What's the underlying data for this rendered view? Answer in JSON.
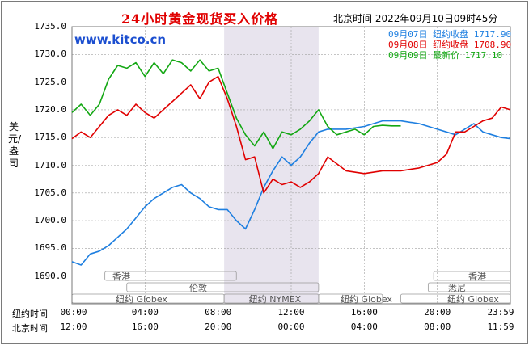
{
  "header": {
    "title": "24小时黄金现货买入价格",
    "timestamp": "北京时间  2022年09月10日09时45分",
    "site": "www.kitco.cn"
  },
  "colors": {
    "series_0907": "#1e7fe0",
    "series_0908": "#e00000",
    "series_0909": "#13a713",
    "shade": "#e8e4ee",
    "grid": "#a0a0a0"
  },
  "axis": {
    "ylabel": "美元/盎司",
    "row1_label": "纽约时间",
    "row2_label": "北京时间",
    "x_ny": [
      "00:00",
      "04:00",
      "08:00",
      "12:00",
      "16:00",
      "20:00",
      "23:59"
    ],
    "x_bj": [
      "12:00",
      "16:00",
      "20:00",
      "00:00",
      "04:00",
      "08:00",
      "11:59"
    ]
  },
  "sessions": {
    "hongkong_1": "香港",
    "hongkong_2": "香港",
    "london": "伦敦",
    "sydney": "悉尼",
    "ny_globex_1": "纽约 Globex",
    "ny_nymex": "纽约 NYMEX",
    "ny_globex_2": "纽约 Globex",
    "ny_globex_3": "纽约 Globex"
  },
  "legend": [
    {
      "label": "09月07日  纽约收盘 1717.90",
      "color": "#1e7fe0"
    },
    {
      "label": "09月08日  纽约收盘 1708.90",
      "color": "#e00000"
    },
    {
      "label": "09月09日    最新价 1717.10",
      "color": "#13a713"
    }
  ],
  "chart_data": {
    "type": "line",
    "title": "24小时黄金现货买入价格",
    "ylabel": "美元/盎司",
    "xlabel": "纽约时间 / 北京时间",
    "ylim": [
      1685,
      1735
    ],
    "xlim_hours_ny": [
      0,
      24
    ],
    "yticks": [
      1690,
      1695,
      1700,
      1705,
      1710,
      1715,
      1720,
      1725,
      1730,
      1735
    ],
    "grid": true,
    "shaded_session_hours_ny": [
      8.33,
      13.5
    ],
    "series": [
      {
        "name": "09月07日",
        "closing_label": "纽约收盘 1717.90",
        "x_hours_ny": [
          0,
          0.5,
          1,
          1.5,
          2,
          2.5,
          3,
          3.5,
          4,
          4.5,
          5,
          5.5,
          6,
          6.5,
          7,
          7.5,
          8,
          8.5,
          9,
          9.5,
          10,
          10.5,
          11,
          11.5,
          12,
          12.5,
          13,
          13.5,
          14,
          15,
          16,
          17,
          18,
          19,
          20,
          20.5,
          21,
          21.5,
          22,
          22.5,
          23,
          23.5,
          24
        ],
        "y": [
          1692.6,
          1692.0,
          1694.0,
          1694.5,
          1695.5,
          1697.0,
          1698.5,
          1700.5,
          1702.5,
          1704.0,
          1705.0,
          1706.0,
          1706.5,
          1705.0,
          1704.0,
          1702.5,
          1702.0,
          1702.0,
          1700.0,
          1698.5,
          1702.0,
          1706.0,
          1709.0,
          1711.5,
          1710.0,
          1711.5,
          1714.0,
          1716.0,
          1716.5,
          1716.5,
          1717.0,
          1718.0,
          1718.0,
          1717.5,
          1716.5,
          1716.0,
          1715.5,
          1716.5,
          1717.5,
          1716.0,
          1715.5,
          1715.0,
          1714.8
        ]
      },
      {
        "name": "09月08日",
        "closing_label": "纽约收盘 1708.90",
        "x_hours_ny": [
          0,
          0.5,
          1,
          1.5,
          2,
          2.5,
          3,
          3.5,
          4,
          4.5,
          5,
          5.5,
          6,
          6.5,
          7,
          7.5,
          8,
          8.5,
          9,
          9.5,
          10,
          10.5,
          11,
          11.5,
          12,
          12.5,
          13,
          13.5,
          14,
          15,
          16,
          17,
          18,
          19,
          20,
          20.5,
          21,
          21.5,
          22,
          22.5,
          23,
          23.5,
          24
        ],
        "y": [
          1714.8,
          1716.0,
          1715.0,
          1717.0,
          1719.0,
          1720.0,
          1719.0,
          1721.0,
          1719.5,
          1718.5,
          1720.0,
          1721.5,
          1723.0,
          1724.5,
          1722.0,
          1725.0,
          1726.0,
          1722.0,
          1717.0,
          1711.0,
          1711.5,
          1705.0,
          1707.5,
          1706.5,
          1707.0,
          1706.0,
          1707.0,
          1708.5,
          1711.5,
          1709.0,
          1708.5,
          1709.0,
          1709.0,
          1709.5,
          1710.5,
          1712.0,
          1716.0,
          1716.0,
          1717.0,
          1718.0,
          1718.5,
          1720.5,
          1720.0
        ]
      },
      {
        "name": "09月09日",
        "closing_label": "最新价 1717.10",
        "x_hours_ny": [
          0,
          0.5,
          1,
          1.5,
          2,
          2.5,
          3,
          3.5,
          4,
          4.5,
          5,
          5.5,
          6,
          6.5,
          7,
          7.5,
          8,
          8.5,
          9,
          9.5,
          10,
          10.5,
          11,
          11.5,
          12,
          12.5,
          13,
          13.5,
          14,
          14.5,
          15,
          15.5,
          16,
          16.5,
          17,
          17.5,
          18
        ],
        "y": [
          1719.5,
          1721.0,
          1719.0,
          1721.0,
          1725.5,
          1728.0,
          1727.5,
          1728.5,
          1726.0,
          1728.5,
          1726.5,
          1729.0,
          1728.5,
          1727.0,
          1729.0,
          1727.0,
          1727.5,
          1723.0,
          1718.5,
          1715.5,
          1713.5,
          1716.0,
          1713.0,
          1716.0,
          1715.5,
          1716.5,
          1718.0,
          1720.0,
          1717.0,
          1715.5,
          1716.0,
          1716.5,
          1715.5,
          1717.0,
          1717.2,
          1717.1,
          1717.1
        ]
      }
    ]
  }
}
